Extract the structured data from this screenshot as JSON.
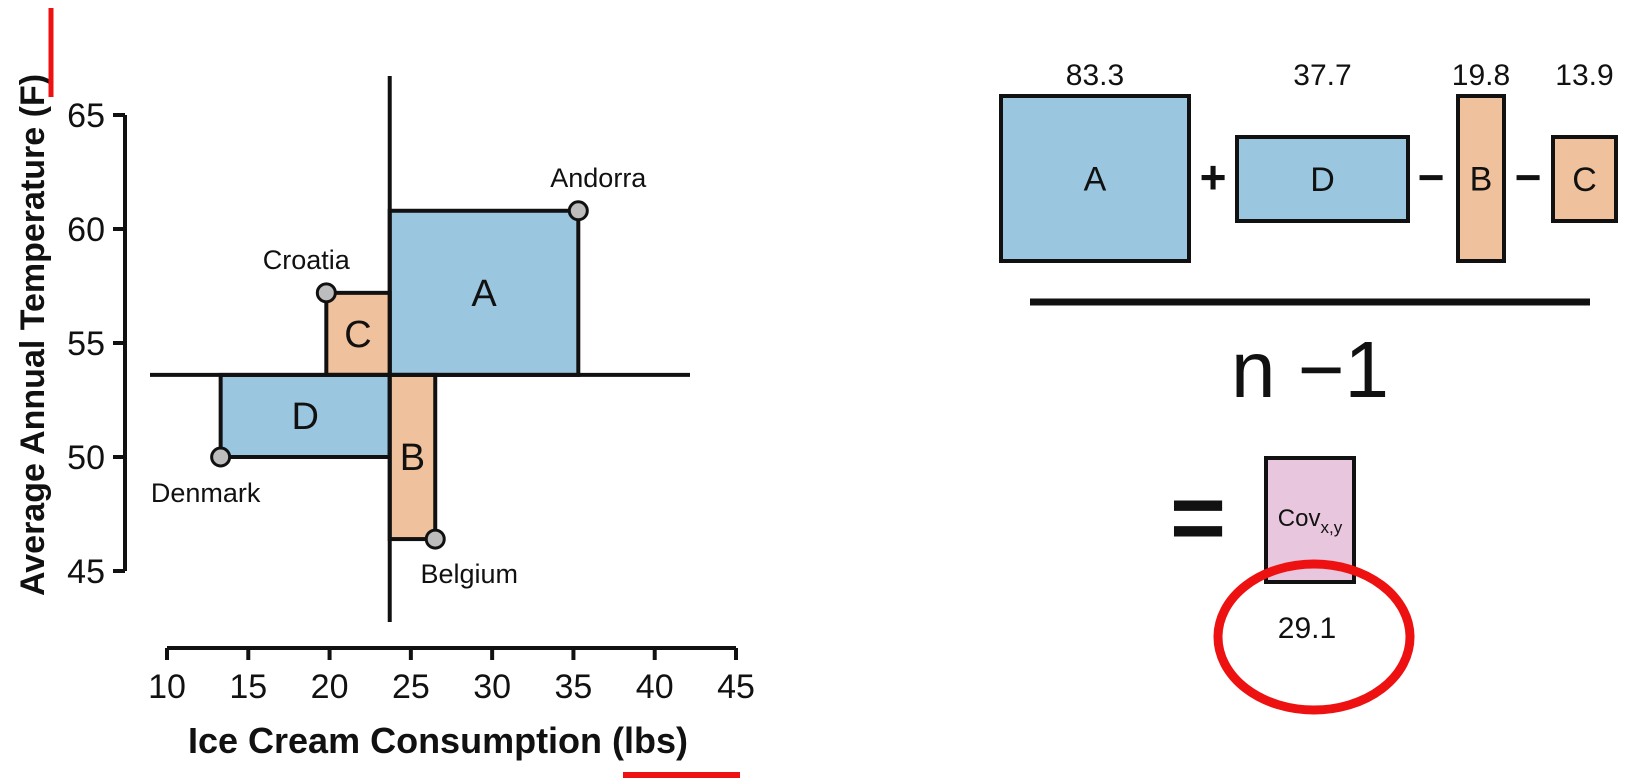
{
  "chart_data": {
    "type": "scatter",
    "xlabel": "Ice Cream Consumption (lbs)",
    "ylabel": "Average Annual Temperature (F)",
    "xlim": [
      10,
      45
    ],
    "ylim": [
      45,
      65
    ],
    "x_ticks": [
      "10",
      "15",
      "20",
      "25",
      "30",
      "35",
      "40",
      "45"
    ],
    "y_ticks": [
      "45",
      "50",
      "55",
      "60",
      "65"
    ],
    "mean_x": 23.7,
    "mean_y": 53.6,
    "points": [
      {
        "label": "Andorra",
        "x": 35.3,
        "y": 60.8
      },
      {
        "label": "Croatia",
        "x": 19.8,
        "y": 57.2
      },
      {
        "label": "Denmark",
        "x": 13.3,
        "y": 50.0
      },
      {
        "label": "Belgium",
        "x": 26.5,
        "y": 46.4
      }
    ],
    "rectangles": [
      {
        "label": "A",
        "sign": "positive",
        "point": "Andorra"
      },
      {
        "label": "C",
        "sign": "negative",
        "point": "Croatia"
      },
      {
        "label": "D",
        "sign": "positive",
        "point": "Denmark"
      },
      {
        "label": "B",
        "sign": "negative",
        "point": "Belgium"
      }
    ],
    "grid": false
  },
  "formula": {
    "terms": [
      {
        "label": "A",
        "value": "83.3",
        "sign": "positive"
      },
      {
        "label": "D",
        "value": "37.7",
        "sign": "positive"
      },
      {
        "label": "B",
        "value": "19.8",
        "sign": "negative"
      },
      {
        "label": "C",
        "value": "13.9",
        "sign": "negative"
      }
    ],
    "ops": [
      "+",
      "−",
      "−"
    ],
    "denominator": "n −1",
    "equals": "=",
    "result_main": "Cov",
    "result_sub": "x,y",
    "result_value": "29.1"
  },
  "colors": {
    "positive": "#9ac6df",
    "negative": "#efc19c",
    "result": "#e8c6de",
    "point": "#bdbdbd",
    "highlight": "#ee1111",
    "ink": "#111111"
  }
}
